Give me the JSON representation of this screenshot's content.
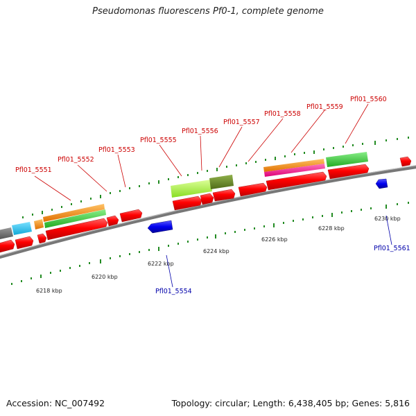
{
  "title": "Pseudomonas fluorescens Pf0-1, complete genome",
  "footer": {
    "accession": "Accession: NC_007492",
    "topology": "Topology: circular; Length: 6,438,405 bp; Genes: 5,816"
  },
  "scale_labels": [
    "6218 kbp",
    "6220 kbp",
    "6222 kbp",
    "6224 kbp",
    "6226 kbp",
    "6228 kbp",
    "6230 kbp"
  ],
  "gene_labels_forward": [
    "Pfl01_5551",
    "Pfl01_5552",
    "Pfl01_5553",
    "Pfl01_5555",
    "Pfl01_5556",
    "Pfl01_5557",
    "Pfl01_5558",
    "Pfl01_5559",
    "Pfl01_5560"
  ],
  "gene_labels_reverse": [
    "Pfl01_5554",
    "Pfl01_5561"
  ],
  "colors": {
    "cds": "#ff0000",
    "reverse_cds": "#0000ee",
    "orange": "#ff8c00",
    "green": "#33cc33",
    "lime": "#aaff33",
    "olive": "#6b8e23",
    "cyan": "#1ec8f0",
    "magenta": "#ff1493",
    "backbone": "#777777"
  }
}
